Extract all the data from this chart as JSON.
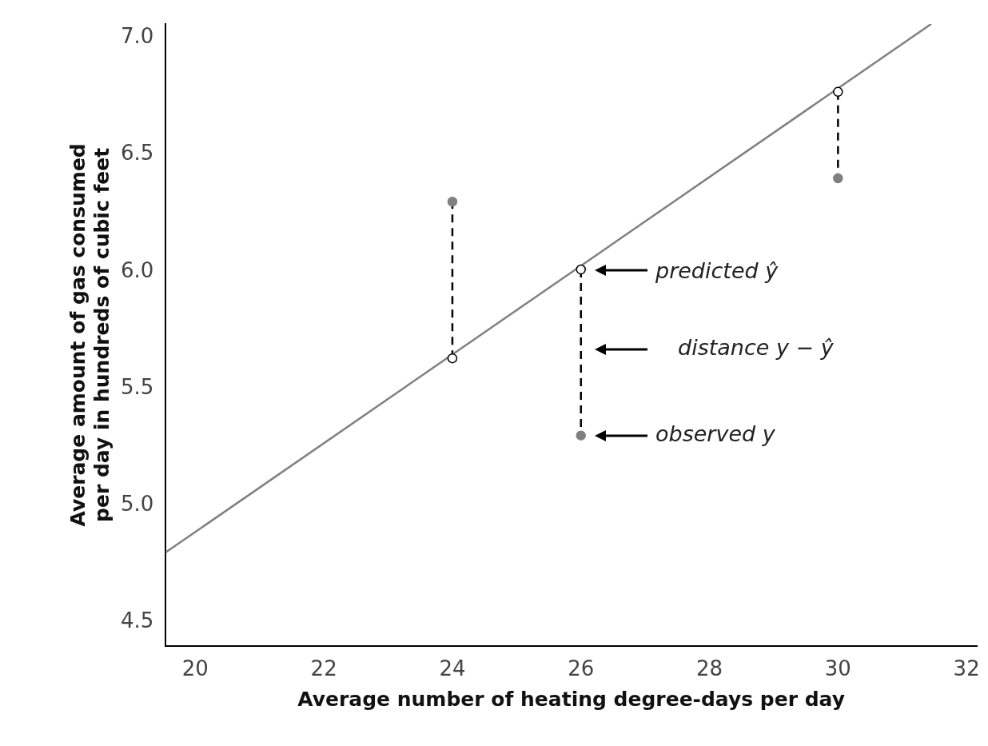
{
  "chart_data": {
    "type": "scatter",
    "xlabel": "Average number of heating degree-days per day",
    "ylabel": "Average amount of gas consumed\nper day in hundreds of cubic feet",
    "xlim": [
      19.54,
      32.16
    ],
    "xticks": [
      20,
      22,
      24,
      26,
      28,
      30,
      32
    ],
    "ylim": [
      4.4,
      7.06
    ],
    "yticks": [
      4.5,
      {
        "value": 5,
        "label": "5.0"
      },
      5.5,
      {
        "value": 6,
        "label": "6.0"
      },
      6.5,
      {
        "value": 7,
        "label": "7.0"
      }
    ],
    "grid": false,
    "legend": false,
    "series": [
      {
        "type": "line",
        "color": "#808080",
        "x": [
          19.54,
          31.45
        ],
        "values": [
          4.8,
          7.06
        ],
        "marker": "none",
        "line_style": "solid"
      },
      {
        "type": "line",
        "color": "#000000",
        "x": [
          24,
          24
        ],
        "values": [
          5.63,
          6.3
        ],
        "marker": "none",
        "line_style": "dashed"
      },
      {
        "type": "line",
        "color": "#000000",
        "x": [
          26,
          26
        ],
        "values": [
          6.01,
          5.3
        ],
        "marker": "none",
        "line_style": "dashed"
      },
      {
        "type": "line",
        "color": "#000000",
        "x": [
          30,
          30
        ],
        "values": [
          6.77,
          6.4
        ],
        "marker": "none",
        "line_style": "dashed"
      },
      {
        "color": "#808080",
        "x": [
          24,
          26,
          30
        ],
        "values": [
          6.3,
          5.3,
          6.4
        ],
        "marker": "circle"
      },
      {
        "color": "#ffffff",
        "x": [
          24,
          26,
          30
        ],
        "values": [
          5.63,
          6.01,
          6.77
        ],
        "marker": "circle"
      }
    ],
    "annotations": [
      "predicted ŷ",
      "distance y − ŷ",
      "observed y"
    ]
  }
}
